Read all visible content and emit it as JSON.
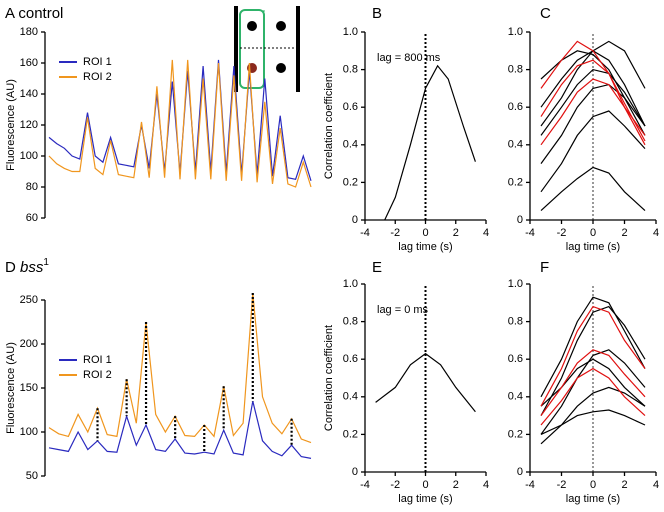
{
  "chart_data": [
    {
      "type": "line",
      "panel": "A",
      "title": "control",
      "y_label": "Fluorescence (AU)",
      "ylim": [
        60,
        180
      ],
      "yticks": [
        60,
        80,
        100,
        120,
        140,
        160,
        180
      ],
      "series": [
        {
          "name": "ROI 1",
          "color": "#2a2abf",
          "values": [
            112,
            108,
            105,
            100,
            98,
            128,
            100,
            96,
            112,
            95,
            94,
            93,
            120,
            92,
            140,
            90,
            148,
            89,
            155,
            90,
            158,
            90,
            162,
            89,
            158,
            88,
            155,
            88,
            150,
            87,
            126,
            86,
            85,
            100,
            84
          ]
        },
        {
          "name": "ROI 2",
          "color": "#f0961e",
          "values": [
            100,
            95,
            92,
            90,
            90,
            125,
            92,
            88,
            110,
            88,
            87,
            86,
            122,
            86,
            145,
            86,
            162,
            85,
            162,
            85,
            150,
            85,
            160,
            84,
            152,
            84,
            160,
            83,
            135,
            82,
            118,
            82,
            80,
            96,
            80
          ]
        }
      ]
    },
    {
      "type": "line",
      "panel": "B",
      "annotation": "lag = 800 ms",
      "x_label": "lag time (s)",
      "y_label": "Correlation coefficient",
      "xlim": [
        -4,
        4
      ],
      "xticks": [
        -4,
        -2,
        0,
        2,
        4
      ],
      "ylim": [
        0,
        1
      ],
      "yticks": [
        0,
        0.2,
        0.4,
        0.6,
        0.8,
        {
          "value": 1,
          "label": "1.0"
        }
      ],
      "reference_line_x": 0,
      "x": [
        -2.7,
        -2,
        -1,
        0,
        0.8,
        1.5,
        2.5,
        3.3
      ],
      "series": [
        {
          "color": "#000000",
          "values": [
            0,
            0.12,
            0.4,
            0.7,
            0.82,
            0.75,
            0.5,
            0.31
          ]
        }
      ]
    },
    {
      "type": "line",
      "panel": "C",
      "x_label": "lag time (s)",
      "xlim": [
        -4,
        4
      ],
      "xticks": [
        -4,
        -2,
        0,
        2,
        4
      ],
      "ylim": [
        0,
        1
      ],
      "yticks": [
        0,
        0.2,
        0.4,
        0.6,
        0.8,
        {
          "value": 1,
          "label": "1.0"
        }
      ],
      "reference_line_x": 0,
      "x": [
        -3.3,
        -2,
        -1,
        0,
        1,
        2,
        3.3
      ],
      "series": [
        {
          "color": "#000000",
          "values": [
            0.75,
            0.85,
            0.9,
            0.88,
            0.8,
            0.65,
            0.45
          ]
        },
        {
          "color": "#000000",
          "values": [
            0.6,
            0.75,
            0.85,
            0.9,
            0.85,
            0.72,
            0.5
          ]
        },
        {
          "color": "#000000",
          "values": [
            0.45,
            0.6,
            0.72,
            0.8,
            0.78,
            0.68,
            0.5
          ]
        },
        {
          "color": "#000000",
          "values": [
            0.3,
            0.45,
            0.6,
            0.7,
            0.72,
            0.65,
            0.5
          ]
        },
        {
          "color": "#000000",
          "values": [
            0.15,
            0.3,
            0.45,
            0.55,
            0.58,
            0.5,
            0.38
          ]
        },
        {
          "color": "#000000",
          "values": [
            0.05,
            0.15,
            0.22,
            0.28,
            0.25,
            0.15,
            0.05
          ]
        },
        {
          "color": "#000000",
          "values": [
            0.5,
            0.65,
            0.8,
            0.9,
            0.95,
            0.9,
            0.7
          ]
        },
        {
          "color": "#e01010",
          "values": [
            0.7,
            0.85,
            0.95,
            0.9,
            0.78,
            0.6,
            0.4
          ]
        },
        {
          "color": "#e01010",
          "values": [
            0.55,
            0.72,
            0.82,
            0.85,
            0.78,
            0.62,
            0.42
          ]
        },
        {
          "color": "#e01010",
          "values": [
            0.4,
            0.55,
            0.68,
            0.75,
            0.72,
            0.6,
            0.45
          ]
        }
      ]
    },
    {
      "type": "line",
      "panel": "D",
      "title": "bss",
      "title_superscript": "1",
      "y_label": "Fluorescence (AU)",
      "ylim": [
        50,
        250
      ],
      "yticks": [
        50,
        100,
        150,
        200,
        250
      ],
      "series": [
        {
          "name": "ROI 1",
          "color": "#2a2abf",
          "values": [
            82,
            80,
            78,
            100,
            80,
            90,
            78,
            77,
            118,
            85,
            108,
            80,
            78,
            92,
            76,
            75,
            77,
            75,
            102,
            76,
            74,
            135,
            90,
            78,
            73,
            85,
            72,
            70
          ]
        },
        {
          "name": "ROI 2",
          "color": "#f0961e",
          "values": [
            105,
            98,
            95,
            120,
            100,
            127,
            97,
            95,
            160,
            110,
            225,
            120,
            100,
            118,
            96,
            95,
            108,
            95,
            152,
            96,
            110,
            258,
            140,
            110,
            98,
            115,
            92,
            88
          ]
        }
      ]
    },
    {
      "type": "line",
      "panel": "E",
      "annotation": "lag = 0 ms",
      "x_label": "lag time (s)",
      "y_label": "Correlation coefficient",
      "xlim": [
        -4,
        4
      ],
      "xticks": [
        -4,
        -2,
        0,
        2,
        4
      ],
      "ylim": [
        0,
        1
      ],
      "yticks": [
        0,
        0.2,
        0.4,
        0.6,
        0.8,
        {
          "value": 1,
          "label": "1.0"
        }
      ],
      "reference_line_x": 0,
      "x": [
        -3.3,
        -2,
        -1,
        0,
        1,
        2,
        3.3
      ],
      "series": [
        {
          "color": "#000000",
          "values": [
            0.37,
            0.45,
            0.57,
            0.63,
            0.57,
            0.45,
            0.32
          ]
        }
      ]
    },
    {
      "type": "line",
      "panel": "F",
      "x_label": "lag time (s)",
      "xlim": [
        -4,
        4
      ],
      "xticks": [
        -4,
        -2,
        0,
        2,
        4
      ],
      "ylim": [
        0,
        1
      ],
      "yticks": [
        0,
        0.2,
        0.4,
        0.6,
        0.8,
        {
          "value": 1,
          "label": "1.0"
        }
      ],
      "reference_line_x": 0,
      "x": [
        -3.3,
        -2,
        -1,
        0,
        1,
        2,
        3.3
      ],
      "series": [
        {
          "color": "#000000",
          "values": [
            0.4,
            0.6,
            0.8,
            0.93,
            0.9,
            0.75,
            0.55
          ]
        },
        {
          "color": "#000000",
          "values": [
            0.3,
            0.5,
            0.7,
            0.85,
            0.88,
            0.78,
            0.6
          ]
        },
        {
          "color": "#000000",
          "values": [
            0.2,
            0.35,
            0.5,
            0.62,
            0.65,
            0.58,
            0.45
          ]
        },
        {
          "color": "#000000",
          "values": [
            0.15,
            0.25,
            0.35,
            0.42,
            0.45,
            0.42,
            0.35
          ]
        },
        {
          "color": "#000000",
          "values": [
            0.2,
            0.25,
            0.3,
            0.32,
            0.33,
            0.3,
            0.25
          ]
        },
        {
          "color": "#000000",
          "values": [
            0.35,
            0.45,
            0.55,
            0.6,
            0.55,
            0.45,
            0.35
          ]
        },
        {
          "color": "#e01010",
          "values": [
            0.35,
            0.55,
            0.75,
            0.88,
            0.85,
            0.7,
            0.55
          ]
        },
        {
          "color": "#e01010",
          "values": [
            0.3,
            0.45,
            0.58,
            0.65,
            0.62,
            0.52,
            0.4
          ]
        },
        {
          "color": "#e01010",
          "values": [
            0.25,
            0.38,
            0.5,
            0.55,
            0.5,
            0.4,
            0.3
          ]
        }
      ]
    }
  ]
}
